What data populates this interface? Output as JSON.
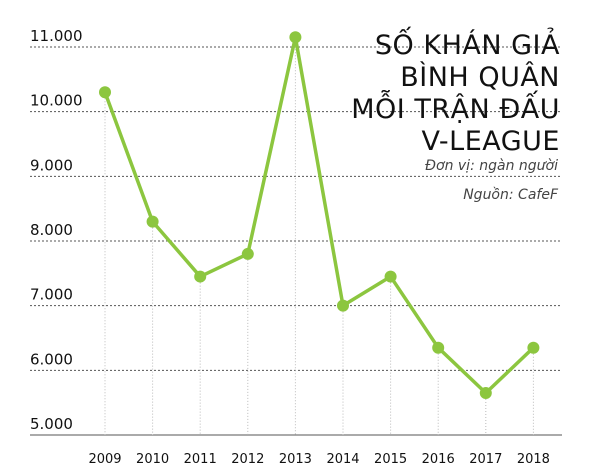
{
  "chart_data": {
    "type": "line",
    "title_lines": [
      "SỐ KHÁN GIẢ",
      "BÌNH QUÂN",
      "MỖI TRẬN ĐẤU",
      "V-LEAGUE"
    ],
    "unit_note": "Đơn vị: ngàn người",
    "source_note": "Nguồn: CafeF",
    "x": [
      "2009",
      "2010",
      "2011",
      "2012",
      "2013",
      "2014",
      "2015",
      "2016",
      "2017",
      "2018"
    ],
    "values": [
      10300,
      8300,
      7450,
      7800,
      11150,
      7000,
      7450,
      6350,
      5650,
      6350
    ],
    "ylim": [
      5000,
      11000
    ],
    "y_ticks": [
      "5.000",
      "6.000",
      "7.000",
      "8.000",
      "9.000",
      "10.000",
      "11.000"
    ],
    "grid": true,
    "colors": {
      "line": "#8cc63f",
      "grid": "#555555",
      "vertical_grid": "#bbbbbb"
    }
  }
}
